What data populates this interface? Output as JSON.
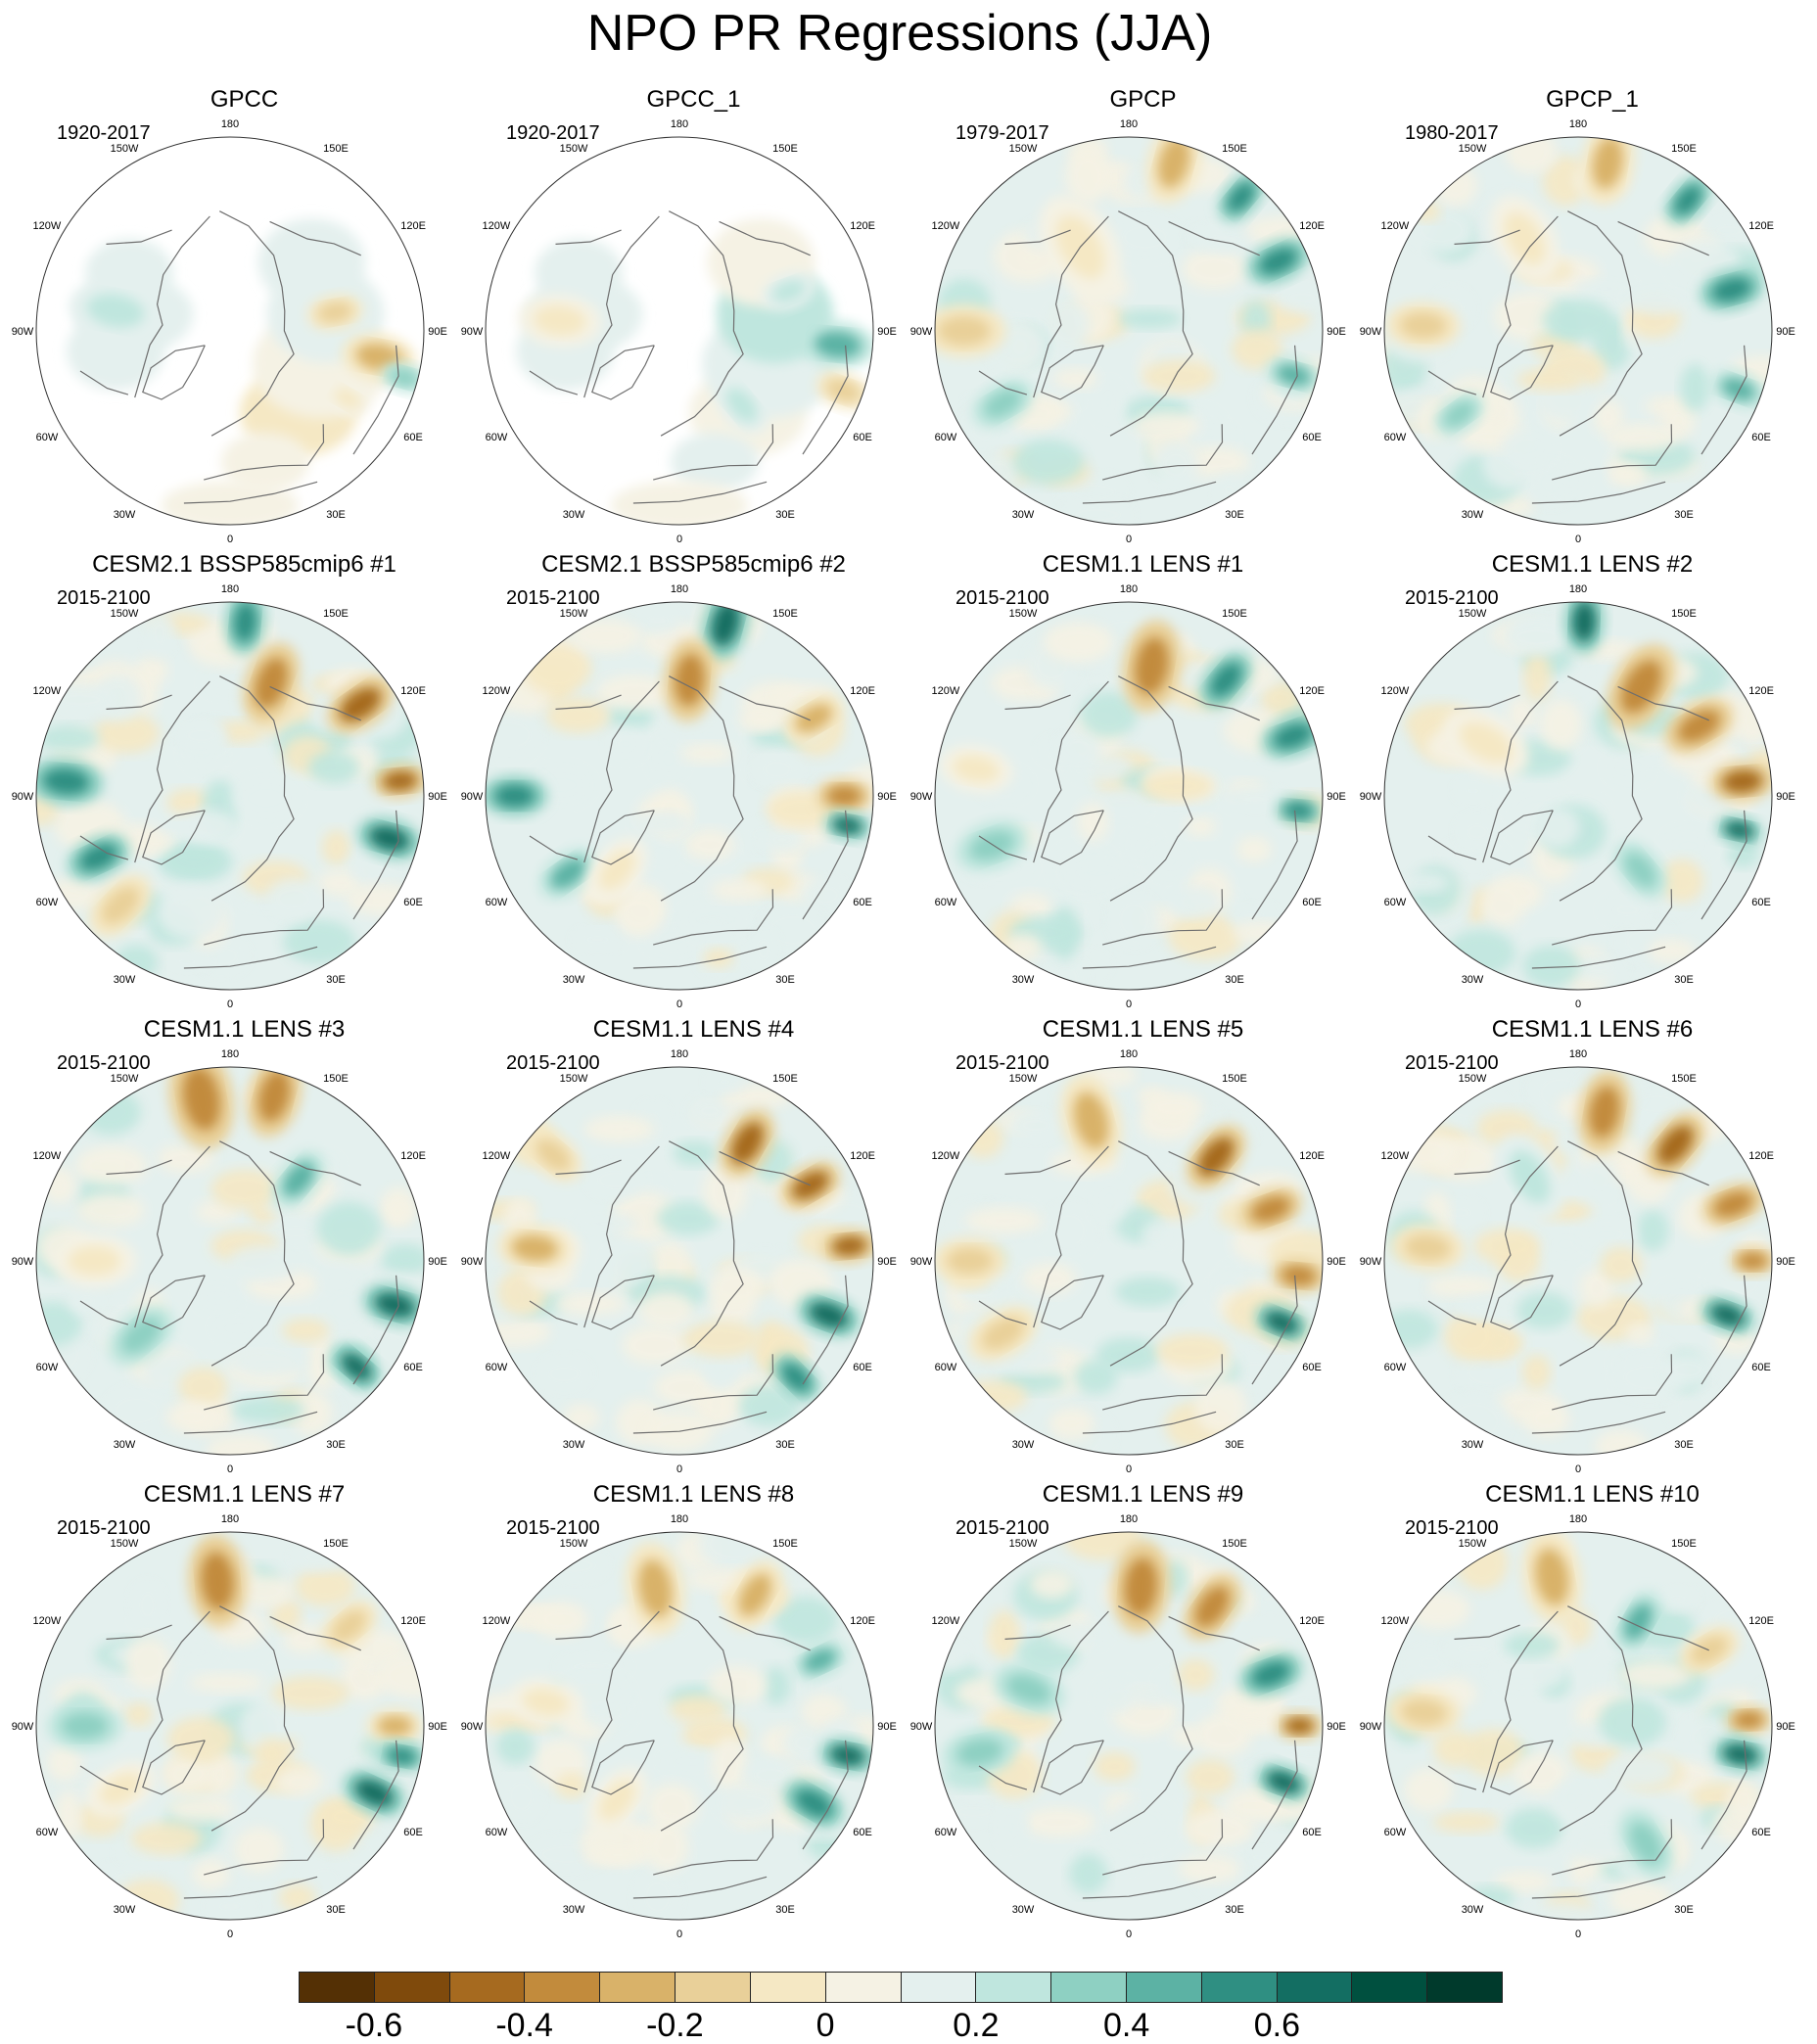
{
  "figure": {
    "title": "NPO PR Regressions (JJA)"
  },
  "lon_labels": [
    "180",
    "150E",
    "120E",
    "90E",
    "60E",
    "30E",
    "0",
    "30W",
    "60W",
    "90W",
    "120W",
    "150W"
  ],
  "panels": [
    {
      "title": "GPCC",
      "period": "1920-2017",
      "coverage": "land",
      "features": [
        {
          "lon": 100,
          "r": 0.55,
          "s": 0.06,
          "v": -0.3
        },
        {
          "lon": 80,
          "r": 0.78,
          "s": 0.08,
          "v": -0.35
        },
        {
          "lon": 75,
          "r": 0.93,
          "s": 0.05,
          "v": 0.25
        },
        {
          "lon": 60,
          "r": 0.7,
          "s": 0.05,
          "v": -0.15
        },
        {
          "lon": -100,
          "r": 0.6,
          "s": 0.1,
          "v": 0.12
        }
      ]
    },
    {
      "title": "GPCC_1",
      "period": "1920-2017",
      "coverage": "land",
      "features": [
        {
          "lon": 85,
          "r": 0.82,
          "s": 0.08,
          "v": 0.3
        },
        {
          "lon": 70,
          "r": 0.9,
          "s": 0.06,
          "v": -0.25
        },
        {
          "lon": 110,
          "r": 0.6,
          "s": 0.06,
          "v": 0.15
        },
        {
          "lon": -95,
          "r": 0.62,
          "s": 0.09,
          "v": -0.15
        },
        {
          "lon": 40,
          "r": 0.5,
          "s": 0.07,
          "v": 0.1
        }
      ]
    },
    {
      "title": "GPCP",
      "period": "1979-2017",
      "coverage": "full",
      "features": [
        {
          "lon": 165,
          "r": 0.9,
          "s": 0.09,
          "v": -0.35
        },
        {
          "lon": 140,
          "r": 0.9,
          "s": 0.06,
          "v": 0.45
        },
        {
          "lon": 115,
          "r": 0.85,
          "s": 0.07,
          "v": 0.4
        },
        {
          "lon": 75,
          "r": 0.88,
          "s": 0.06,
          "v": 0.35
        },
        {
          "lon": -90,
          "r": 0.85,
          "s": 0.09,
          "v": -0.25
        },
        {
          "lon": -60,
          "r": 0.75,
          "s": 0.07,
          "v": 0.25
        },
        {
          "lon": -150,
          "r": 0.5,
          "s": 0.12,
          "v": -0.12
        }
      ]
    },
    {
      "title": "GPCP_1",
      "period": "1980-2017",
      "coverage": "full",
      "features": [
        {
          "lon": 170,
          "r": 0.88,
          "s": 0.09,
          "v": -0.35
        },
        {
          "lon": 140,
          "r": 0.88,
          "s": 0.06,
          "v": 0.45
        },
        {
          "lon": 105,
          "r": 0.82,
          "s": 0.07,
          "v": 0.45
        },
        {
          "lon": 70,
          "r": 0.88,
          "s": 0.06,
          "v": 0.35
        },
        {
          "lon": -92,
          "r": 0.8,
          "s": 0.08,
          "v": -0.3
        },
        {
          "lon": -55,
          "r": 0.75,
          "s": 0.06,
          "v": 0.25
        },
        {
          "lon": -150,
          "r": 0.55,
          "s": 0.1,
          "v": -0.12
        }
      ]
    },
    {
      "title": "CESM2.1 BSSP585cmip6 #1",
      "period": "2015-2100",
      "coverage": "full",
      "features": [
        {
          "lon": 175,
          "r": 0.9,
          "s": 0.07,
          "v": 0.45
        },
        {
          "lon": 160,
          "r": 0.62,
          "s": 0.09,
          "v": -0.45
        },
        {
          "lon": 125,
          "r": 0.82,
          "s": 0.08,
          "v": -0.6
        },
        {
          "lon": 95,
          "r": 0.88,
          "s": 0.06,
          "v": -0.55
        },
        {
          "lon": 75,
          "r": 0.85,
          "s": 0.07,
          "v": 0.5
        },
        {
          "lon": -95,
          "r": 0.85,
          "s": 0.08,
          "v": 0.45
        },
        {
          "lon": -65,
          "r": 0.75,
          "s": 0.07,
          "v": 0.4
        },
        {
          "lon": -45,
          "r": 0.8,
          "s": 0.08,
          "v": -0.25
        }
      ]
    },
    {
      "title": "CESM2.1 BSSP585cmip6 #2",
      "period": "2015-2100",
      "coverage": "full",
      "features": [
        {
          "lon": 165,
          "r": 0.92,
          "s": 0.08,
          "v": 0.55
        },
        {
          "lon": 175,
          "r": 0.6,
          "s": 0.09,
          "v": -0.45
        },
        {
          "lon": 120,
          "r": 0.8,
          "s": 0.07,
          "v": -0.4
        },
        {
          "lon": 90,
          "r": 0.85,
          "s": 0.06,
          "v": -0.5
        },
        {
          "lon": 80,
          "r": 0.88,
          "s": 0.05,
          "v": 0.5
        },
        {
          "lon": -90,
          "r": 0.85,
          "s": 0.07,
          "v": 0.4
        },
        {
          "lon": -55,
          "r": 0.7,
          "s": 0.07,
          "v": 0.35
        },
        {
          "lon": -40,
          "r": 0.5,
          "s": 0.08,
          "v": -0.2
        }
      ]
    },
    {
      "title": "CESM1.1 LENS #1",
      "period": "2015-2100",
      "coverage": "full",
      "features": [
        {
          "lon": 170,
          "r": 0.68,
          "s": 0.1,
          "v": -0.5
        },
        {
          "lon": 140,
          "r": 0.78,
          "s": 0.07,
          "v": 0.45
        },
        {
          "lon": 110,
          "r": 0.9,
          "s": 0.07,
          "v": 0.45
        },
        {
          "lon": 85,
          "r": 0.88,
          "s": 0.05,
          "v": 0.4
        },
        {
          "lon": -70,
          "r": 0.75,
          "s": 0.08,
          "v": 0.25
        },
        {
          "lon": -100,
          "r": 0.8,
          "s": 0.08,
          "v": -0.15
        }
      ]
    },
    {
      "title": "CESM1.1 LENS #2",
      "period": "2015-2100",
      "coverage": "full",
      "features": [
        {
          "lon": 178,
          "r": 0.9,
          "s": 0.07,
          "v": 0.5
        },
        {
          "lon": 150,
          "r": 0.65,
          "s": 0.1,
          "v": -0.5
        },
        {
          "lon": 120,
          "r": 0.72,
          "s": 0.08,
          "v": -0.45
        },
        {
          "lon": 95,
          "r": 0.85,
          "s": 0.07,
          "v": -0.55
        },
        {
          "lon": 78,
          "r": 0.85,
          "s": 0.05,
          "v": 0.55
        },
        {
          "lon": 40,
          "r": 0.5,
          "s": 0.07,
          "v": 0.2
        },
        {
          "lon": -120,
          "r": 0.55,
          "s": 0.1,
          "v": -0.12
        }
      ]
    },
    {
      "title": "CESM1.1 LENS #3",
      "period": "2015-2100",
      "coverage": "full",
      "features": [
        {
          "lon": -170,
          "r": 0.85,
          "s": 0.11,
          "v": -0.45
        },
        {
          "lon": 165,
          "r": 0.88,
          "s": 0.09,
          "v": -0.45
        },
        {
          "lon": 140,
          "r": 0.55,
          "s": 0.07,
          "v": 0.35
        },
        {
          "lon": 75,
          "r": 0.88,
          "s": 0.07,
          "v": 0.5
        },
        {
          "lon": 50,
          "r": 0.85,
          "s": 0.06,
          "v": 0.5
        },
        {
          "lon": -90,
          "r": 0.7,
          "s": 0.09,
          "v": -0.2
        },
        {
          "lon": -50,
          "r": 0.6,
          "s": 0.08,
          "v": 0.2
        }
      ]
    },
    {
      "title": "CESM1.1 LENS #4",
      "period": "2015-2100",
      "coverage": "full",
      "features": [
        {
          "lon": 150,
          "r": 0.7,
          "s": 0.08,
          "v": -0.55
        },
        {
          "lon": 120,
          "r": 0.78,
          "s": 0.07,
          "v": -0.6
        },
        {
          "lon": 95,
          "r": 0.88,
          "s": 0.06,
          "v": -0.55
        },
        {
          "lon": 70,
          "r": 0.82,
          "s": 0.07,
          "v": 0.5
        },
        {
          "lon": 45,
          "r": 0.85,
          "s": 0.06,
          "v": 0.45
        },
        {
          "lon": -95,
          "r": 0.75,
          "s": 0.08,
          "v": -0.35
        },
        {
          "lon": -130,
          "r": 0.85,
          "s": 0.07,
          "v": -0.25
        }
      ]
    },
    {
      "title": "CESM1.1 LENS #5",
      "period": "2015-2100",
      "coverage": "full",
      "features": [
        {
          "lon": -165,
          "r": 0.75,
          "s": 0.1,
          "v": -0.4
        },
        {
          "lon": 140,
          "r": 0.7,
          "s": 0.08,
          "v": -0.55
        },
        {
          "lon": 110,
          "r": 0.78,
          "s": 0.07,
          "v": -0.5
        },
        {
          "lon": 85,
          "r": 0.88,
          "s": 0.06,
          "v": -0.45
        },
        {
          "lon": 68,
          "r": 0.85,
          "s": 0.06,
          "v": 0.55
        },
        {
          "lon": -90,
          "r": 0.82,
          "s": 0.08,
          "v": -0.3
        },
        {
          "lon": -60,
          "r": 0.75,
          "s": 0.08,
          "v": -0.3
        }
      ]
    },
    {
      "title": "CESM1.1 LENS #6",
      "period": "2015-2100",
      "coverage": "full",
      "features": [
        {
          "lon": 170,
          "r": 0.78,
          "s": 0.09,
          "v": -0.5
        },
        {
          "lon": 140,
          "r": 0.78,
          "s": 0.08,
          "v": -0.6
        },
        {
          "lon": 110,
          "r": 0.85,
          "s": 0.07,
          "v": -0.5
        },
        {
          "lon": 90,
          "r": 0.9,
          "s": 0.05,
          "v": -0.45
        },
        {
          "lon": 70,
          "r": 0.82,
          "s": 0.06,
          "v": 0.5
        },
        {
          "lon": -95,
          "r": 0.78,
          "s": 0.08,
          "v": -0.3
        },
        {
          "lon": -150,
          "r": 0.5,
          "s": 0.1,
          "v": 0.12
        }
      ]
    },
    {
      "title": "CESM1.1 LENS #7",
      "period": "2015-2100",
      "coverage": "full",
      "features": [
        {
          "lon": -175,
          "r": 0.75,
          "s": 0.1,
          "v": -0.45
        },
        {
          "lon": 130,
          "r": 0.8,
          "s": 0.07,
          "v": -0.3
        },
        {
          "lon": 90,
          "r": 0.85,
          "s": 0.06,
          "v": -0.4
        },
        {
          "lon": 80,
          "r": 0.9,
          "s": 0.05,
          "v": 0.45
        },
        {
          "lon": 65,
          "r": 0.82,
          "s": 0.07,
          "v": 0.5
        },
        {
          "lon": -90,
          "r": 0.75,
          "s": 0.08,
          "v": 0.25
        },
        {
          "lon": -60,
          "r": 0.65,
          "s": 0.08,
          "v": -0.15
        }
      ]
    },
    {
      "title": "CESM1.1 LENS #8",
      "period": "2015-2100",
      "coverage": "full",
      "features": [
        {
          "lon": -170,
          "r": 0.72,
          "s": 0.1,
          "v": -0.35
        },
        {
          "lon": 150,
          "r": 0.78,
          "s": 0.08,
          "v": -0.35
        },
        {
          "lon": 115,
          "r": 0.8,
          "s": 0.06,
          "v": 0.35
        },
        {
          "lon": 80,
          "r": 0.88,
          "s": 0.06,
          "v": 0.55
        },
        {
          "lon": 60,
          "r": 0.8,
          "s": 0.07,
          "v": 0.45
        },
        {
          "lon": -100,
          "r": 0.7,
          "s": 0.08,
          "v": -0.2
        },
        {
          "lon": -40,
          "r": 0.5,
          "s": 0.08,
          "v": -0.15
        }
      ]
    },
    {
      "title": "CESM1.1 LENS #9",
      "period": "2015-2100",
      "coverage": "full",
      "features": [
        {
          "lon": 175,
          "r": 0.72,
          "s": 0.1,
          "v": -0.5
        },
        {
          "lon": 145,
          "r": 0.75,
          "s": 0.08,
          "v": -0.45
        },
        {
          "lon": 110,
          "r": 0.78,
          "s": 0.07,
          "v": 0.4
        },
        {
          "lon": 90,
          "r": 0.88,
          "s": 0.05,
          "v": -0.55
        },
        {
          "lon": 70,
          "r": 0.85,
          "s": 0.06,
          "v": 0.55
        },
        {
          "lon": -80,
          "r": 0.78,
          "s": 0.08,
          "v": 0.25
        },
        {
          "lon": -110,
          "r": 0.55,
          "s": 0.08,
          "v": 0.2
        }
      ]
    },
    {
      "title": "CESM1.1 LENS #10",
      "period": "2015-2100",
      "coverage": "full",
      "features": [
        {
          "lon": -170,
          "r": 0.78,
          "s": 0.1,
          "v": -0.4
        },
        {
          "lon": 150,
          "r": 0.62,
          "s": 0.07,
          "v": 0.35
        },
        {
          "lon": 120,
          "r": 0.78,
          "s": 0.07,
          "v": -0.3
        },
        {
          "lon": 92,
          "r": 0.88,
          "s": 0.05,
          "v": -0.5
        },
        {
          "lon": 80,
          "r": 0.85,
          "s": 0.06,
          "v": 0.55
        },
        {
          "lon": -95,
          "r": 0.8,
          "s": 0.08,
          "v": -0.25
        },
        {
          "lon": 30,
          "r": 0.7,
          "s": 0.08,
          "v": 0.2
        }
      ]
    }
  ],
  "colorbar": {
    "colors": [
      "#543005",
      "#7f4a0c",
      "#a66a1f",
      "#c28b3c",
      "#d9b269",
      "#e9d099",
      "#f5e8c4",
      "#f5f2e4",
      "#e4f0ee",
      "#bfe6de",
      "#8ed0c2",
      "#5cb2a4",
      "#2f8f82",
      "#136e62",
      "#00503f",
      "#003a2c"
    ],
    "bounds": [
      -0.7,
      -0.6,
      -0.5,
      -0.4,
      -0.3,
      -0.2,
      -0.1,
      0,
      0.1,
      0.2,
      0.3,
      0.4,
      0.5,
      0.6,
      0.7
    ],
    "labels": [
      "-0.6",
      "-0.4",
      "-0.2",
      "0",
      "0.2",
      "0.4",
      "0.6"
    ]
  },
  "style": {
    "coast_color": "#6e6e6e",
    "missing_color": "#ffffff"
  }
}
